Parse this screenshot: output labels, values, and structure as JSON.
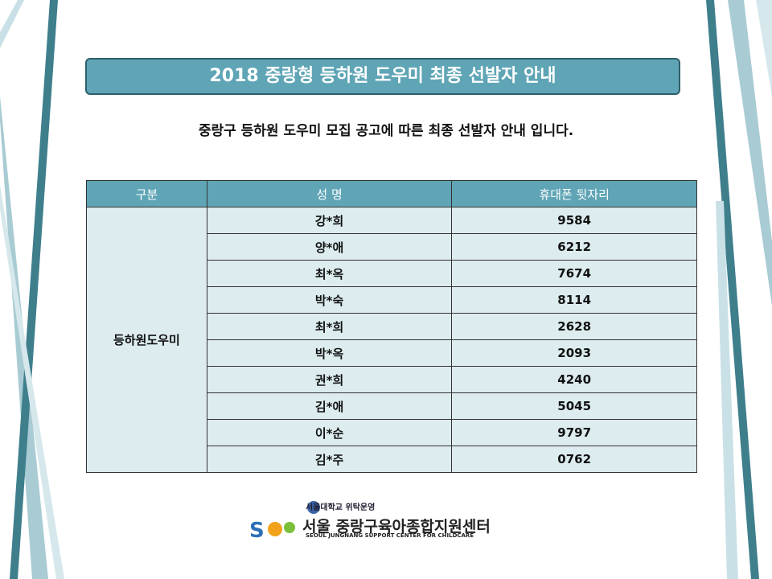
{
  "header": {
    "title": "2018 중랑형 등하원 도우미 최종 선발자 안내",
    "subtitle": "중랑구 등하원 도우미 모집 공고에 따른 최종 선발자 안내 입니다."
  },
  "table": {
    "columns": [
      "구분",
      "성 명",
      "휴대폰 뒷자리"
    ],
    "group": "등하원도우미",
    "rows": [
      [
        "강*희",
        "9584"
      ],
      [
        "양*애",
        "6212"
      ],
      [
        "최*옥",
        "7674"
      ],
      [
        "박*숙",
        "8114"
      ],
      [
        "최*희",
        "2628"
      ],
      [
        "박*옥",
        "2093"
      ],
      [
        "권*희",
        "4240"
      ],
      [
        "김*애",
        "5045"
      ],
      [
        "이*순",
        "9797"
      ],
      [
        "김*주",
        "0762"
      ]
    ]
  },
  "footer": {
    "operator": "서울대학교 위탁운영",
    "center": "서울 중랑구육아종합지원센터",
    "center_en": "SEOUL JUNGNANG SUPPORT CENTER FOR CHILDCARE"
  }
}
